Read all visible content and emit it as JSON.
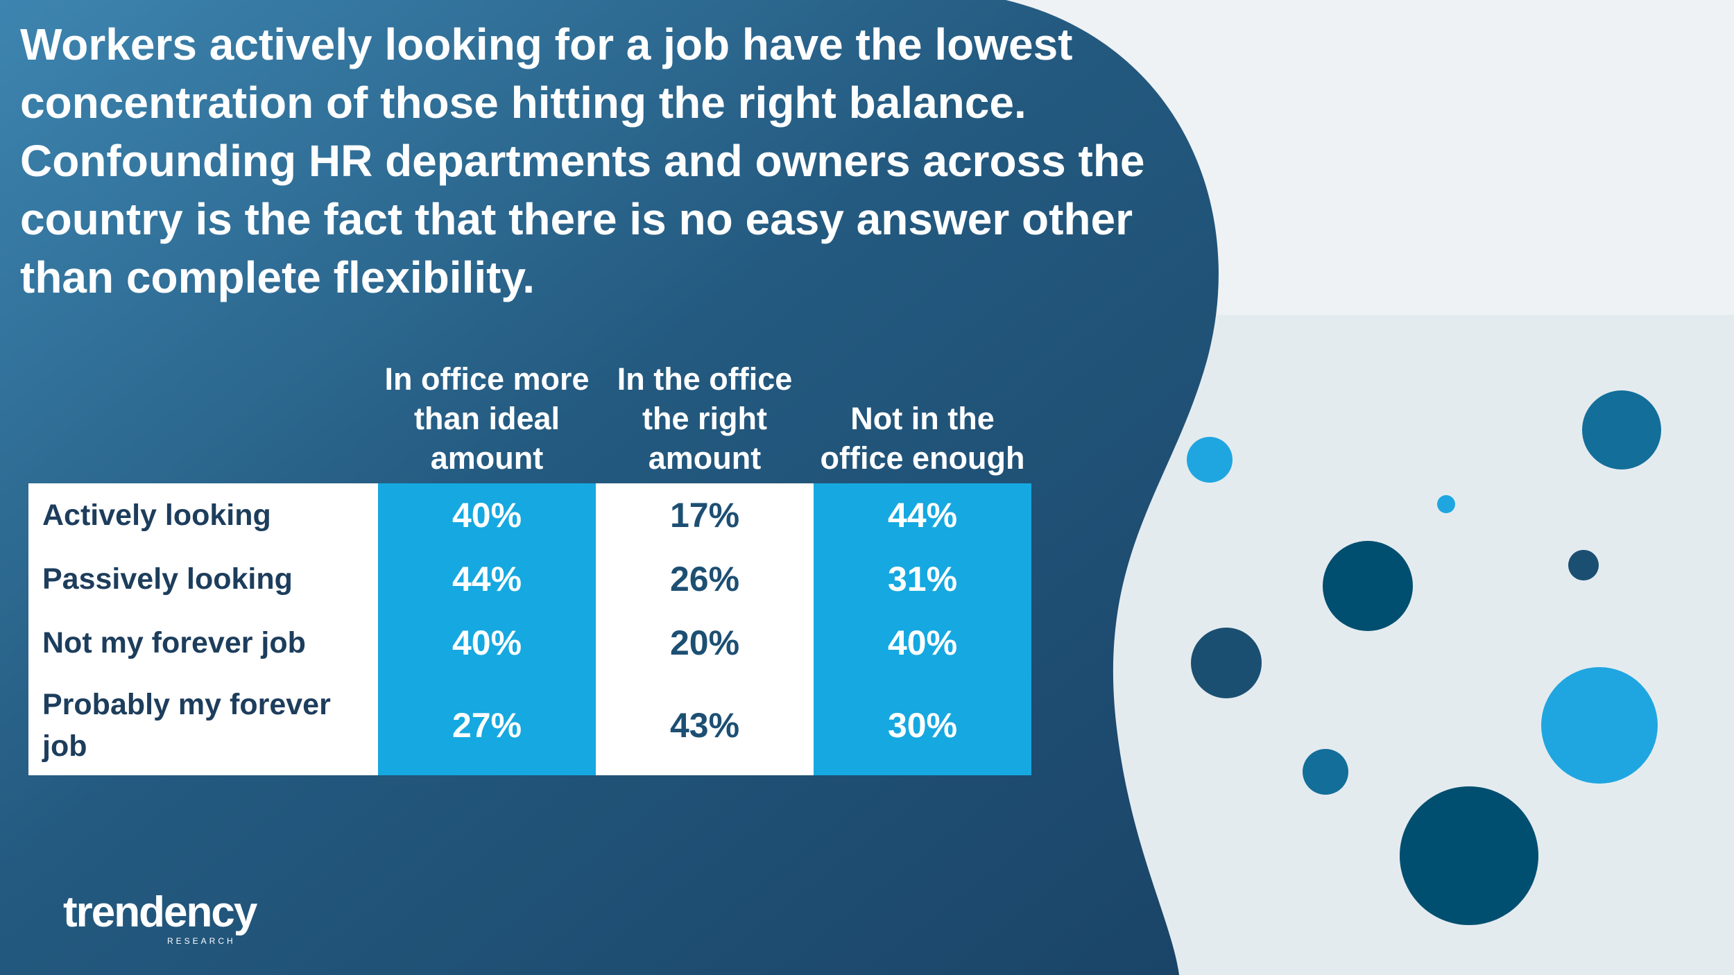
{
  "header": {
    "title": "Workers actively looking for a job have the lowest concentration of those hitting the right balance. Confounding HR departments and owners across the country is the fact that there is no easy answer other than complete flexibility."
  },
  "table": {
    "columns": [
      "In office more than ideal amount",
      "In the office the right amount",
      "Not in the office enough"
    ],
    "rows": [
      [
        "Actively looking",
        "40%",
        "17%",
        "44%"
      ],
      [
        "Passively looking",
        "44%",
        "26%",
        "31%"
      ],
      [
        "Not my forever job",
        "40%",
        "20%",
        "40%"
      ],
      [
        "Probably my forever job",
        "27%",
        "43%",
        "30%"
      ]
    ]
  },
  "logo": {
    "name": "trendency",
    "tagline": "RESEARCH"
  }
}
